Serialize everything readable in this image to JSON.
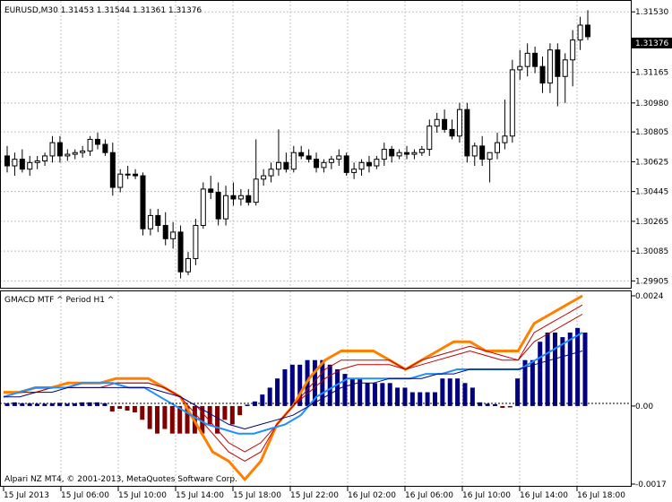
{
  "window": {
    "symbol_line": "EURUSD,M30 1.31453 1.31544 1.31361 1.31376",
    "indicator_title": "GMACD MTF ^ Period H1 ^",
    "copyright": "Alpari NZ MT4, © 2001-2013, MetaQuotes Software Corp.",
    "current_price_tag": "1.31376"
  },
  "price_scale": {
    "labels": [
      "1.31530",
      "1.31165",
      "1.30980",
      "1.30805",
      "1.30625",
      "1.30445",
      "1.30265",
      "1.30085",
      "1.29905"
    ],
    "min": 1.2988,
    "max": 1.3158
  },
  "indicator_scale": {
    "labels": [
      "0.0024",
      "0.00",
      "-0.0017"
    ],
    "min": -0.0017,
    "max": 0.0024
  },
  "time_axis": {
    "labels": [
      "15 Jul 2013",
      "15 Jul 06:00",
      "15 Jul 10:00",
      "15 Jul 14:00",
      "15 Jul 18:00",
      "15 Jul 22:00",
      "16 Jul 02:00",
      "16 Jul 06:00",
      "16 Jul 10:00",
      "16 Jul 14:00",
      "16 Jul 18:00"
    ]
  },
  "colors": {
    "background": "#ffffff",
    "grid": "#c0c0c0",
    "candle_bull": "#ffffff",
    "candle_bear": "#000000",
    "hist_positive": "#000080",
    "hist_negative": "#800000",
    "line_orange": "#ff8000",
    "line_red": "#c00000",
    "line_blue": "#1e90ff",
    "line_navy": "#000080",
    "price_tag": "#000000"
  },
  "chart_data": {
    "type": "candlestick",
    "candles": [
      {
        "o": 1.3066,
        "h": 1.3072,
        "l": 1.3056,
        "c": 1.306
      },
      {
        "o": 1.306,
        "h": 1.3068,
        "l": 1.3054,
        "c": 1.3064
      },
      {
        "o": 1.3064,
        "h": 1.307,
        "l": 1.3056,
        "c": 1.3058
      },
      {
        "o": 1.3058,
        "h": 1.3066,
        "l": 1.3054,
        "c": 1.3062
      },
      {
        "o": 1.3062,
        "h": 1.3066,
        "l": 1.3058,
        "c": 1.3063
      },
      {
        "o": 1.3063,
        "h": 1.3068,
        "l": 1.306,
        "c": 1.3066
      },
      {
        "o": 1.3066,
        "h": 1.3078,
        "l": 1.3062,
        "c": 1.3074
      },
      {
        "o": 1.3074,
        "h": 1.3078,
        "l": 1.3062,
        "c": 1.3066
      },
      {
        "o": 1.3066,
        "h": 1.307,
        "l": 1.3063,
        "c": 1.3067
      },
      {
        "o": 1.3067,
        "h": 1.307,
        "l": 1.3064,
        "c": 1.3068
      },
      {
        "o": 1.3068,
        "h": 1.3072,
        "l": 1.3065,
        "c": 1.3069
      },
      {
        "o": 1.3069,
        "h": 1.3078,
        "l": 1.3066,
        "c": 1.3076
      },
      {
        "o": 1.3076,
        "h": 1.308,
        "l": 1.307,
        "c": 1.3073
      },
      {
        "o": 1.3073,
        "h": 1.3076,
        "l": 1.3066,
        "c": 1.3068
      },
      {
        "o": 1.3068,
        "h": 1.3074,
        "l": 1.3042,
        "c": 1.3047
      },
      {
        "o": 1.3047,
        "h": 1.3058,
        "l": 1.3044,
        "c": 1.3055
      },
      {
        "o": 1.3055,
        "h": 1.306,
        "l": 1.3052,
        "c": 1.3055
      },
      {
        "o": 1.3055,
        "h": 1.3058,
        "l": 1.3052,
        "c": 1.3054
      },
      {
        "o": 1.3054,
        "h": 1.3056,
        "l": 1.3018,
        "c": 1.3022
      },
      {
        "o": 1.3022,
        "h": 1.3034,
        "l": 1.3018,
        "c": 1.303
      },
      {
        "o": 1.303,
        "h": 1.3034,
        "l": 1.302,
        "c": 1.3024
      },
      {
        "o": 1.3024,
        "h": 1.3032,
        "l": 1.3012,
        "c": 1.3016
      },
      {
        "o": 1.3016,
        "h": 1.3026,
        "l": 1.301,
        "c": 1.302
      },
      {
        "o": 1.302,
        "h": 1.3024,
        "l": 1.2992,
        "c": 1.2996
      },
      {
        "o": 1.2996,
        "h": 1.3008,
        "l": 1.2994,
        "c": 1.3004
      },
      {
        "o": 1.3004,
        "h": 1.3028,
        "l": 1.3,
        "c": 1.3024
      },
      {
        "o": 1.3024,
        "h": 1.305,
        "l": 1.3022,
        "c": 1.3046
      },
      {
        "o": 1.3046,
        "h": 1.3054,
        "l": 1.304,
        "c": 1.3044
      },
      {
        "o": 1.3044,
        "h": 1.305,
        "l": 1.3024,
        "c": 1.3028
      },
      {
        "o": 1.3028,
        "h": 1.3048,
        "l": 1.3024,
        "c": 1.3042
      },
      {
        "o": 1.3042,
        "h": 1.305,
        "l": 1.3036,
        "c": 1.304
      },
      {
        "o": 1.304,
        "h": 1.3046,
        "l": 1.3036,
        "c": 1.3042
      },
      {
        "o": 1.3042,
        "h": 1.3046,
        "l": 1.3036,
        "c": 1.3038
      },
      {
        "o": 1.3038,
        "h": 1.3076,
        "l": 1.3036,
        "c": 1.3052
      },
      {
        "o": 1.3052,
        "h": 1.3058,
        "l": 1.3048,
        "c": 1.3054
      },
      {
        "o": 1.3054,
        "h": 1.3062,
        "l": 1.305,
        "c": 1.3058
      },
      {
        "o": 1.3058,
        "h": 1.3082,
        "l": 1.3054,
        "c": 1.3062
      },
      {
        "o": 1.3062,
        "h": 1.3068,
        "l": 1.3056,
        "c": 1.3058
      },
      {
        "o": 1.3058,
        "h": 1.3072,
        "l": 1.3056,
        "c": 1.3068
      },
      {
        "o": 1.3068,
        "h": 1.3072,
        "l": 1.3064,
        "c": 1.3066
      },
      {
        "o": 1.3066,
        "h": 1.307,
        "l": 1.3062,
        "c": 1.3064
      },
      {
        "o": 1.3064,
        "h": 1.3068,
        "l": 1.3056,
        "c": 1.3059
      },
      {
        "o": 1.3059,
        "h": 1.3064,
        "l": 1.3056,
        "c": 1.3062
      },
      {
        "o": 1.3062,
        "h": 1.3066,
        "l": 1.3058,
        "c": 1.3064
      },
      {
        "o": 1.3064,
        "h": 1.307,
        "l": 1.306,
        "c": 1.3066
      },
      {
        "o": 1.3066,
        "h": 1.3068,
        "l": 1.3054,
        "c": 1.3056
      },
      {
        "o": 1.3056,
        "h": 1.3062,
        "l": 1.3052,
        "c": 1.3058
      },
      {
        "o": 1.3058,
        "h": 1.3064,
        "l": 1.3054,
        "c": 1.3062
      },
      {
        "o": 1.3062,
        "h": 1.3066,
        "l": 1.3056,
        "c": 1.306
      },
      {
        "o": 1.306,
        "h": 1.3066,
        "l": 1.3058,
        "c": 1.3064
      },
      {
        "o": 1.3064,
        "h": 1.3074,
        "l": 1.306,
        "c": 1.307
      },
      {
        "o": 1.307,
        "h": 1.3072,
        "l": 1.3062,
        "c": 1.3066
      },
      {
        "o": 1.3066,
        "h": 1.307,
        "l": 1.3064,
        "c": 1.3068
      },
      {
        "o": 1.3068,
        "h": 1.3072,
        "l": 1.3064,
        "c": 1.3067
      },
      {
        "o": 1.3067,
        "h": 1.307,
        "l": 1.3064,
        "c": 1.3068
      },
      {
        "o": 1.3068,
        "h": 1.3072,
        "l": 1.3066,
        "c": 1.307
      },
      {
        "o": 1.307,
        "h": 1.3088,
        "l": 1.3066,
        "c": 1.3084
      },
      {
        "o": 1.3084,
        "h": 1.3092,
        "l": 1.308,
        "c": 1.3088
      },
      {
        "o": 1.3088,
        "h": 1.3094,
        "l": 1.308,
        "c": 1.3082
      },
      {
        "o": 1.3082,
        "h": 1.3088,
        "l": 1.3076,
        "c": 1.3078
      },
      {
        "o": 1.3078,
        "h": 1.3098,
        "l": 1.3074,
        "c": 1.3094
      },
      {
        "o": 1.3094,
        "h": 1.3098,
        "l": 1.3062,
        "c": 1.3066
      },
      {
        "o": 1.3066,
        "h": 1.3074,
        "l": 1.306,
        "c": 1.3072
      },
      {
        "o": 1.3072,
        "h": 1.3078,
        "l": 1.306,
        "c": 1.3064
      },
      {
        "o": 1.3064,
        "h": 1.3068,
        "l": 1.305,
        "c": 1.3068
      },
      {
        "o": 1.3068,
        "h": 1.308,
        "l": 1.3064,
        "c": 1.3074
      },
      {
        "o": 1.3074,
        "h": 1.31,
        "l": 1.307,
        "c": 1.3078
      },
      {
        "o": 1.3078,
        "h": 1.3124,
        "l": 1.3074,
        "c": 1.3118
      },
      {
        "o": 1.3118,
        "h": 1.313,
        "l": 1.3112,
        "c": 1.312
      },
      {
        "o": 1.312,
        "h": 1.3134,
        "l": 1.3114,
        "c": 1.3128
      },
      {
        "o": 1.3128,
        "h": 1.3132,
        "l": 1.3116,
        "c": 1.312
      },
      {
        "o": 1.312,
        "h": 1.3126,
        "l": 1.3104,
        "c": 1.311
      },
      {
        "o": 1.311,
        "h": 1.3134,
        "l": 1.3104,
        "c": 1.313
      },
      {
        "o": 1.313,
        "h": 1.3134,
        "l": 1.3096,
        "c": 1.3114
      },
      {
        "o": 1.3114,
        "h": 1.3128,
        "l": 1.3098,
        "c": 1.3124
      },
      {
        "o": 1.3124,
        "h": 1.3142,
        "l": 1.3108,
        "c": 1.3136
      },
      {
        "o": 1.3136,
        "h": 1.315,
        "l": 1.313,
        "c": 1.3145
      },
      {
        "o": 1.3145,
        "h": 1.3154,
        "l": 1.3136,
        "c": 1.3138
      }
    ],
    "gmacd_histogram": [
      6e-05,
      8e-05,
      6e-05,
      6e-05,
      5e-05,
      5e-05,
      6e-05,
      7e-05,
      5e-05,
      6e-05,
      8e-05,
      8e-05,
      8e-05,
      6e-05,
      -0.00012,
      -6e-05,
      -0.0001,
      -0.00014,
      -0.0003,
      -0.0005,
      -0.0006,
      -0.0005,
      -0.0006,
      -0.0006,
      -0.0006,
      -0.0006,
      -0.0006,
      -0.0004,
      -0.0006,
      -0.0003,
      -0.0004,
      -0.0002,
      3e-05,
      0.0001,
      0.00025,
      0.0004,
      0.0006,
      0.0008,
      0.0009,
      0.0009,
      0.001,
      0.001,
      0.001,
      0.0009,
      0.0008,
      0.0007,
      0.0006,
      0.0006,
      0.0005,
      0.0005,
      0.0005,
      0.0005,
      0.0004,
      0.0004,
      0.0003,
      0.0003,
      0.0003,
      0.0003,
      0.0006,
      0.0006,
      0.0006,
      0.0005,
      0.0004,
      8e-05,
      5e-05,
      4e-05,
      -4e-05,
      -3e-05,
      0.0006,
      0.001,
      0.001,
      0.0014,
      0.0016,
      0.0016,
      0.0015,
      0.0016,
      0.0017,
      0.0016
    ],
    "series": [
      {
        "values": [
          0.0003,
          0.0003,
          0.0004,
          0.0004,
          0.0005,
          0.0005,
          0.0005,
          0.0006,
          0.0006,
          0.0006,
          0.0004,
          0.0002,
          -0.0004,
          -0.001,
          -0.0012,
          -0.0016,
          -0.0012,
          -0.0004,
          0.0,
          0.0006,
          0.001,
          0.0012,
          0.0012,
          0.0012,
          0.001,
          0.0008,
          0.001,
          0.0012,
          0.0014,
          0.0014,
          0.0012,
          0.0012,
          0.0012,
          0.0018,
          0.002,
          0.0022,
          0.0024
        ]
      },
      {
        "values": [
          0.0002,
          0.0003,
          0.0003,
          0.0004,
          0.0004,
          0.0005,
          0.0005,
          0.0005,
          0.0005,
          0.0005,
          0.0004,
          0.0002,
          -0.0002,
          -0.0006,
          -0.001,
          -0.0012,
          -0.001,
          -0.0004,
          0.0,
          0.0004,
          0.0008,
          0.001,
          0.001,
          0.001,
          0.001,
          0.0008,
          0.001,
          0.0011,
          0.0012,
          0.0013,
          0.0012,
          0.0011,
          0.001,
          0.0016,
          0.0018,
          0.002,
          0.0022
        ]
      },
      {
        "values": [
          0.0002,
          0.0003,
          0.0003,
          0.0004,
          0.0004,
          0.0004,
          0.0004,
          0.0005,
          0.0005,
          0.0005,
          0.0004,
          0.0002,
          0.0,
          -0.0004,
          -0.0008,
          -0.001,
          -0.0008,
          -0.0004,
          0.0,
          0.0003,
          0.0006,
          0.0008,
          0.0009,
          0.0009,
          0.0009,
          0.0008,
          0.0009,
          0.001,
          0.0011,
          0.0012,
          0.0011,
          0.001,
          0.001,
          0.0014,
          0.0016,
          0.0018,
          0.002
        ]
      },
      {
        "values": [
          0.0002,
          0.0003,
          0.0004,
          0.0004,
          0.0004,
          0.0005,
          0.0005,
          0.0005,
          0.0004,
          0.0004,
          0.0002,
          0.0,
          -0.0002,
          -0.0004,
          -0.0005,
          -0.0006,
          -0.0006,
          -0.0005,
          -0.0004,
          -0.0002,
          0.0002,
          0.0004,
          0.0006,
          0.0006,
          0.0006,
          0.0006,
          0.0006,
          0.0007,
          0.0007,
          0.0008,
          0.0008,
          0.0008,
          0.0008,
          0.0008,
          0.001,
          0.0012,
          0.0014,
          0.0016
        ]
      },
      {
        "values": [
          0.0002,
          0.0002,
          0.0003,
          0.0003,
          0.0004,
          0.0004,
          0.0004,
          0.0004,
          0.0004,
          0.0004,
          0.0003,
          0.0002,
          0.0,
          -0.0002,
          -0.0004,
          -0.0005,
          -0.0004,
          -0.0003,
          -0.0002,
          0.0,
          0.0002,
          0.0004,
          0.0005,
          0.0005,
          0.0006,
          0.0006,
          0.0006,
          0.0007,
          0.0007,
          0.0008,
          0.0008,
          0.0008,
          0.0008,
          0.0009,
          0.001,
          0.0011,
          0.0012
        ]
      }
    ]
  }
}
